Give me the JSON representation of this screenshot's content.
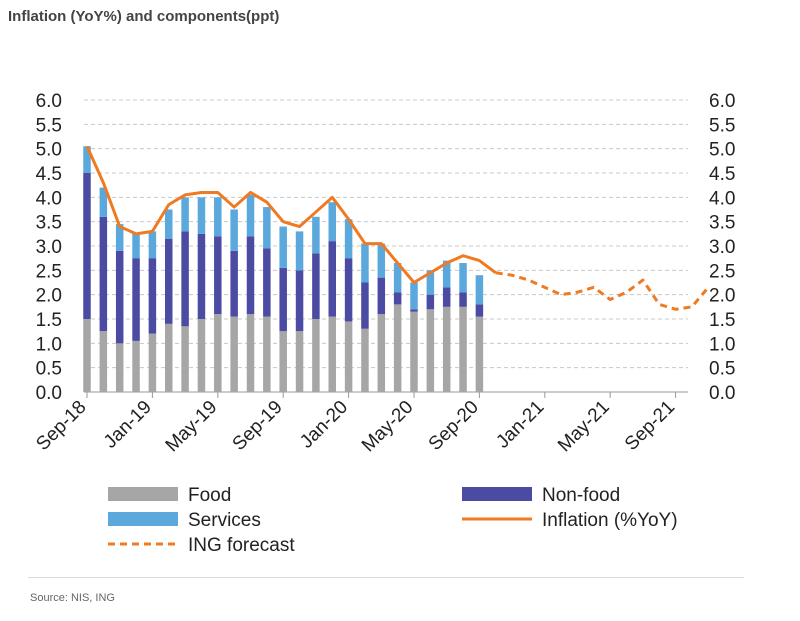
{
  "title": "Inflation (YoY%) and components(ppt)",
  "source": "Source: NIS, ING",
  "colors": {
    "food": "#a6a6a6",
    "nonfood": "#4b4ba3",
    "services": "#5ba8dc",
    "inflation": "#f07a22",
    "grid": "#c8c8c8"
  },
  "chart_data": {
    "type": "bar",
    "stacked": true,
    "grid": true,
    "yticks": [
      "0.0",
      "0.5",
      "1.0",
      "1.5",
      "2.0",
      "2.5",
      "3.0",
      "3.5",
      "4.0",
      "4.5",
      "5.0",
      "5.5",
      "6.0"
    ],
    "ylim": [
      0,
      6
    ],
    "right_axis": true,
    "xticks": [
      "Sep-18",
      "Jan-19",
      "May-19",
      "Sep-19",
      "Jan-20",
      "May-20",
      "Sep-20",
      "Jan-21",
      "May-21",
      "Sep-21"
    ],
    "months": [
      "Sep-18",
      "Oct-18",
      "Nov-18",
      "Dec-18",
      "Jan-19",
      "Feb-19",
      "Mar-19",
      "Apr-19",
      "May-19",
      "Jun-19",
      "Jul-19",
      "Aug-19",
      "Sep-19",
      "Oct-19",
      "Nov-19",
      "Dec-19",
      "Jan-20",
      "Feb-20",
      "Mar-20",
      "Apr-20",
      "May-20",
      "Jun-20",
      "Jul-20",
      "Aug-20",
      "Sep-20",
      "Oct-20",
      "Nov-20",
      "Dec-20",
      "Jan-21",
      "Feb-21",
      "Mar-21",
      "Apr-21",
      "May-21",
      "Jun-21",
      "Jul-21",
      "Aug-21",
      "Sep-21"
    ],
    "series": [
      {
        "name": "Food",
        "kind": "bar",
        "values": [
          1.5,
          1.25,
          1.0,
          1.05,
          1.2,
          1.4,
          1.35,
          1.5,
          1.6,
          1.55,
          1.6,
          1.55,
          1.25,
          1.25,
          1.5,
          1.55,
          1.45,
          1.3,
          1.6,
          1.8,
          1.65,
          1.7,
          1.75,
          1.75,
          1.55
        ]
      },
      {
        "name": "Non-food",
        "kind": "bar",
        "values": [
          3.0,
          2.35,
          1.9,
          1.7,
          1.55,
          1.75,
          1.95,
          1.75,
          1.6,
          1.35,
          1.6,
          1.4,
          1.3,
          1.25,
          1.35,
          1.55,
          1.3,
          0.95,
          0.75,
          0.25,
          0.05,
          0.3,
          0.4,
          0.3,
          0.25
        ]
      },
      {
        "name": "Services",
        "kind": "bar",
        "values": [
          0.55,
          0.6,
          0.55,
          0.5,
          0.55,
          0.6,
          0.7,
          0.75,
          0.8,
          0.85,
          0.85,
          0.85,
          0.85,
          0.8,
          0.75,
          0.8,
          0.8,
          0.8,
          0.7,
          0.6,
          0.55,
          0.5,
          0.55,
          0.6,
          0.6
        ]
      },
      {
        "name": "Inflation (%YoY)",
        "kind": "line",
        "values": [
          5.05,
          4.3,
          3.4,
          3.25,
          3.3,
          3.85,
          4.05,
          4.1,
          4.1,
          3.8,
          4.1,
          3.9,
          3.5,
          3.4,
          3.7,
          4.0,
          3.55,
          3.05,
          3.05,
          2.65,
          2.25,
          2.45,
          2.65,
          2.8,
          2.7,
          2.45
        ]
      },
      {
        "name": "ING forecast",
        "kind": "dashed-line",
        "start_month": "Oct-20",
        "values": [
          2.45,
          2.4,
          2.3,
          2.15,
          2.0,
          2.05,
          2.15,
          1.9,
          2.05,
          2.3,
          1.8,
          1.7,
          1.75,
          2.15
        ]
      }
    ],
    "legend": [
      "Food",
      "Non-food",
      "Services",
      "Inflation (%YoY)",
      "ING forecast"
    ],
    "legend_position": "bottom"
  }
}
